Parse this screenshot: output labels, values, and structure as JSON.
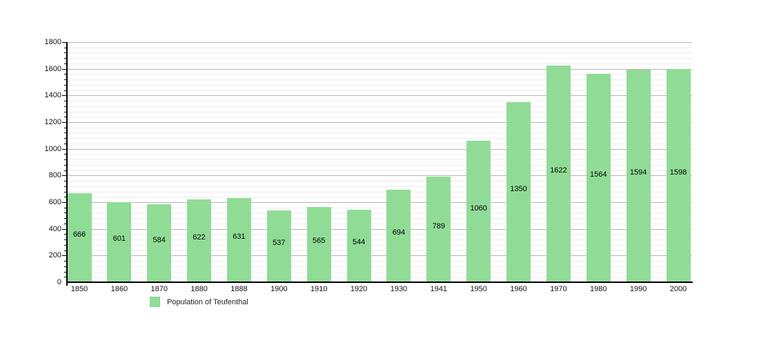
{
  "chart_data": {
    "type": "bar",
    "categories": [
      "1850",
      "1860",
      "1870",
      "1880",
      "1888",
      "1900",
      "1910",
      "1920",
      "1930",
      "1941",
      "1950",
      "1960",
      "1970",
      "1980",
      "1990",
      "2000"
    ],
    "values": [
      666,
      601,
      584,
      622,
      631,
      537,
      565,
      544,
      694,
      789,
      1060,
      1350,
      1622,
      1564,
      1594,
      1598
    ],
    "title": "",
    "xlabel": "",
    "ylabel": "",
    "ylim": [
      0,
      1800
    ],
    "ytick_step": 200,
    "yminor_step": 40,
    "grid": true,
    "legend_position": "bottom-left",
    "legend_label": "Population of Teufenthal",
    "bar_color": "#90dc96",
    "bar_label_color": "#000000",
    "major_grid_color": "#b5b5b5",
    "minor_grid_color": "#ececec",
    "axis_color": "#000000"
  }
}
